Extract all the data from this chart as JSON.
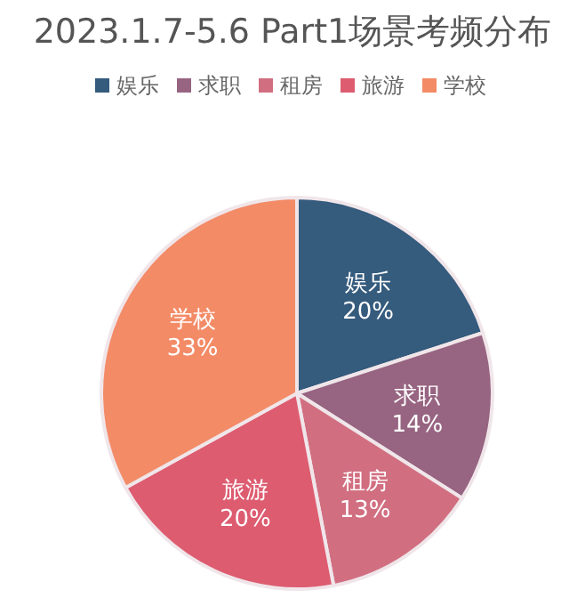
{
  "chart_data": {
    "type": "pie",
    "title": "2023.1.7-5.6 Part1场景考频分布",
    "categories": [
      "娱乐",
      "求职",
      "租房",
      "旅游",
      "学校"
    ],
    "values": [
      20,
      14,
      13,
      20,
      33
    ],
    "colors": [
      "#355b7d",
      "#976481",
      "#d16f81",
      "#dd5c70",
      "#f38b67"
    ],
    "value_labels": [
      "20%",
      "14%",
      "13%",
      "20%",
      "33%"
    ],
    "legend": "top"
  }
}
